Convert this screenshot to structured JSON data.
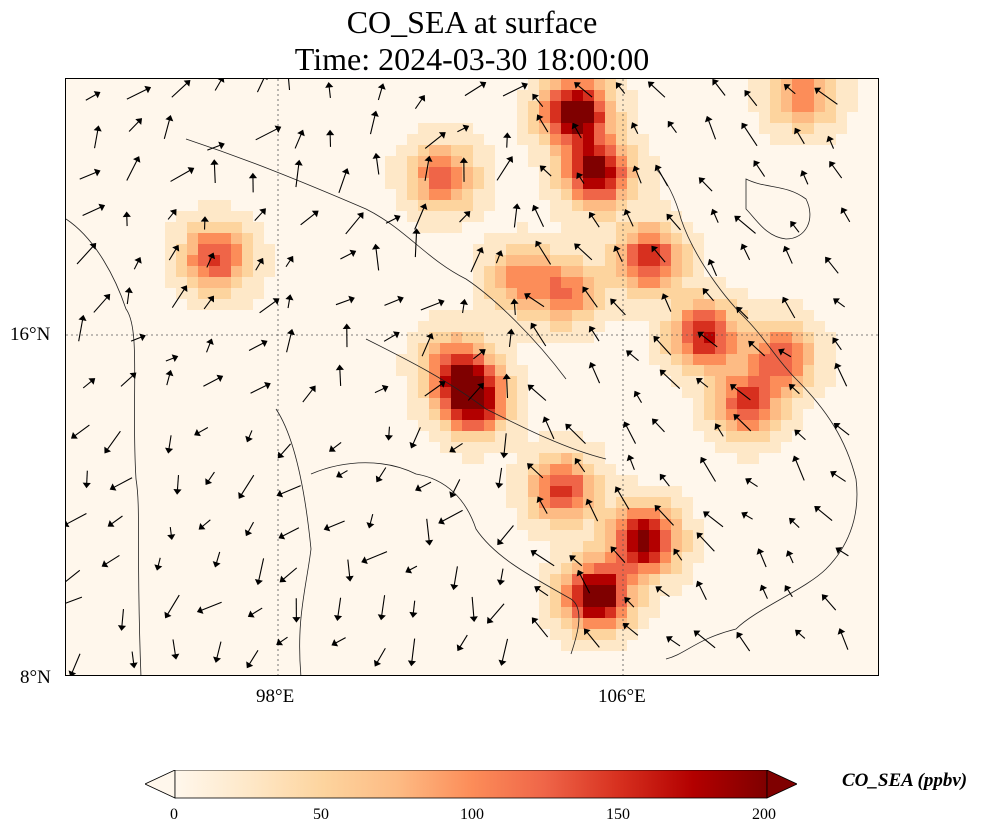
{
  "title": {
    "line1": "CO_SEA at surface",
    "line2": "Time: 2024-03-30 18:00:00"
  },
  "axes": {
    "lat_labels": [
      "16°N",
      "8°N"
    ],
    "lon_labels": [
      "98°E",
      "106°E"
    ],
    "lon_range": [
      93,
      112
    ],
    "lat_range": [
      8,
      22
    ],
    "gridlines": "dotted"
  },
  "colorbar": {
    "label": "CO_SEA (ppbv)",
    "ticks": [
      "0",
      "50",
      "100",
      "150",
      "200"
    ],
    "range": [
      0,
      200
    ],
    "extend": "both",
    "colormap": [
      "#fff7ec",
      "#fee8c8",
      "#fdd49e",
      "#fdbb84",
      "#fc8d59",
      "#ef6548",
      "#d7301f",
      "#b30000",
      "#7f0000"
    ]
  },
  "hotspots": [
    {
      "lon": 104.9,
      "lat": 21.2,
      "value": 220
    },
    {
      "lon": 105.4,
      "lat": 19.8,
      "value": 200
    },
    {
      "lon": 106.6,
      "lat": 17.8,
      "value": 150
    },
    {
      "lon": 107.9,
      "lat": 16.0,
      "value": 160
    },
    {
      "lon": 108.9,
      "lat": 14.4,
      "value": 140
    },
    {
      "lon": 102.5,
      "lat": 14.5,
      "value": 210
    },
    {
      "lon": 102.1,
      "lat": 15.3,
      "value": 120
    },
    {
      "lon": 105.4,
      "lat": 9.9,
      "value": 220
    },
    {
      "lon": 106.5,
      "lat": 11.2,
      "value": 200
    },
    {
      "lon": 104.6,
      "lat": 12.4,
      "value": 140
    },
    {
      "lon": 103.6,
      "lat": 17.3,
      "value": 90
    },
    {
      "lon": 104.7,
      "lat": 17.0,
      "value": 100
    },
    {
      "lon": 101.8,
      "lat": 19.7,
      "value": 120
    },
    {
      "lon": 96.5,
      "lat": 17.8,
      "value": 140
    },
    {
      "lon": 109.7,
      "lat": 15.5,
      "value": 120
    },
    {
      "lon": 110.2,
      "lat": 21.6,
      "value": 100
    }
  ],
  "wind_field": {
    "type": "quiver",
    "dominant_direction": "southeast-to-northwest"
  }
}
